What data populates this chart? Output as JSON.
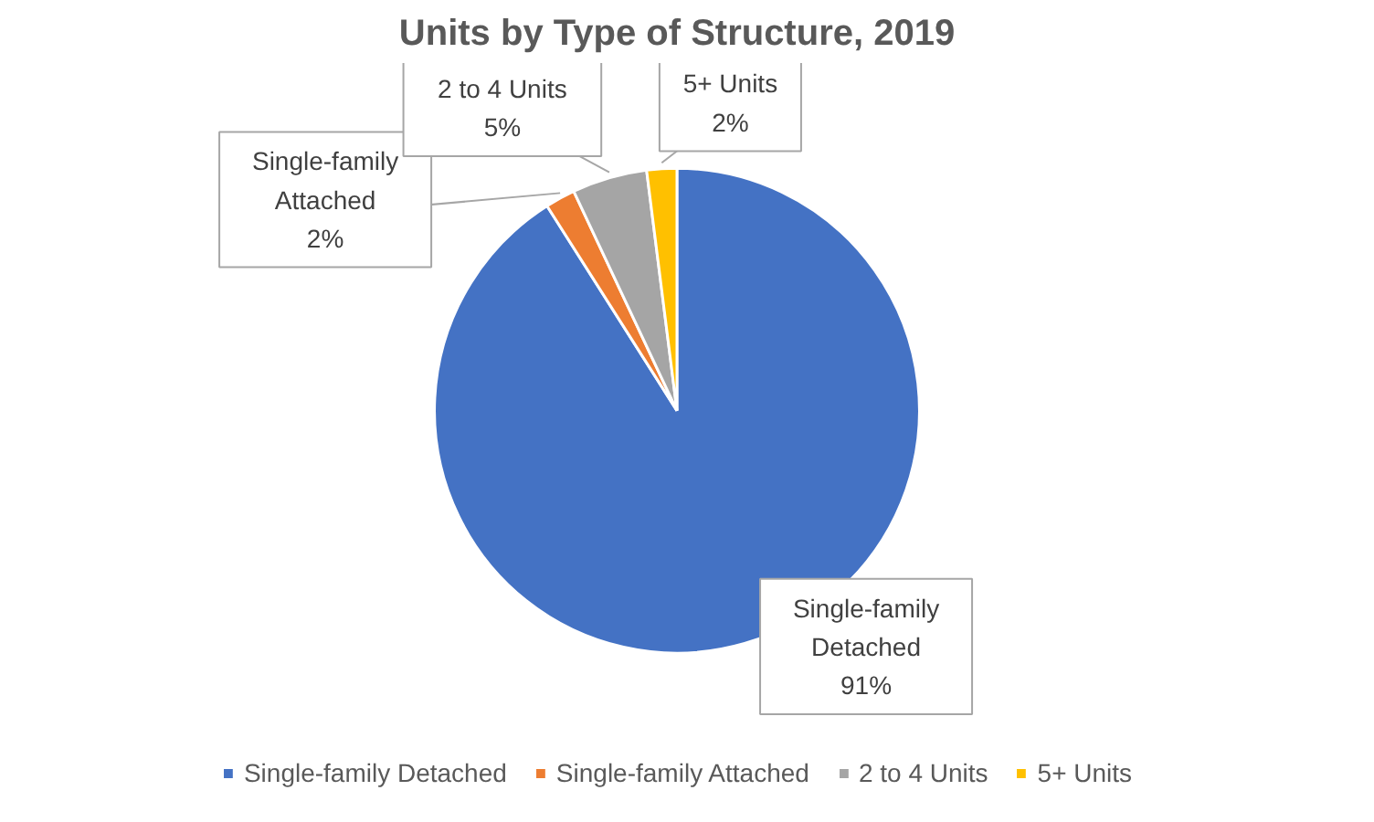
{
  "chart_data": {
    "type": "pie",
    "title": "Units by Type of Structure, 2019",
    "categories": [
      "Single-family Detached",
      "Single-family Attached",
      "2 to 4 Units",
      "5+ Units"
    ],
    "values": [
      91,
      2,
      5,
      2
    ],
    "colors": [
      "#4472c4",
      "#ed7d31",
      "#a5a5a5",
      "#ffc000"
    ],
    "value_labels": [
      "91%",
      "2%",
      "5%",
      "2%"
    ],
    "legend": "bottom"
  }
}
